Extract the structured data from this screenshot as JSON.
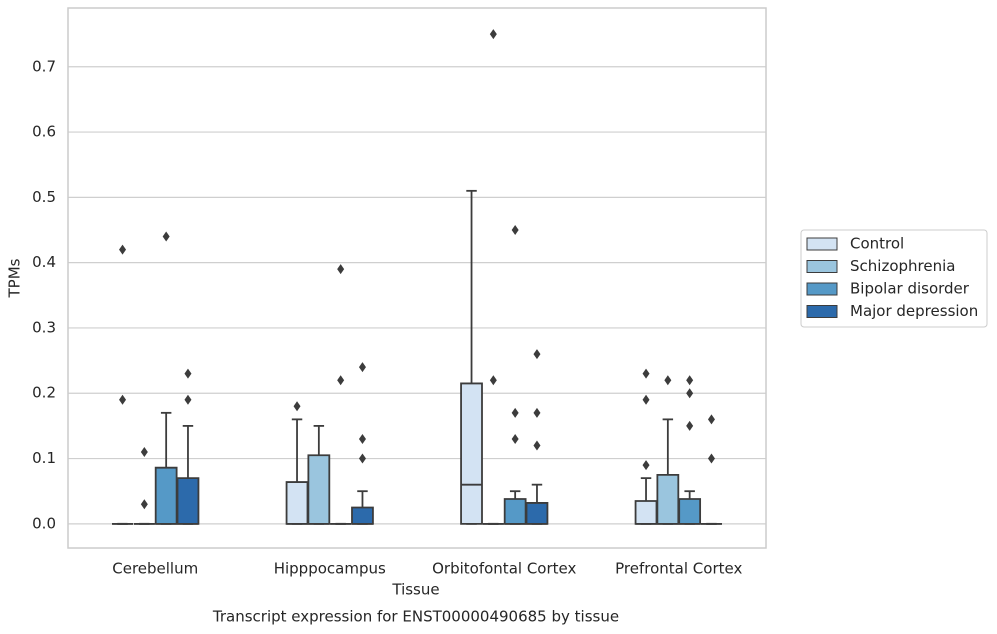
{
  "chart_data": {
    "type": "box",
    "caption": "Transcript expression for ENST00000490685 by tissue",
    "xlabel": "Tissue",
    "ylabel": "TPMs",
    "categories": [
      "Cerebellum",
      "Hipppocampus",
      "Orbitofontal Cortex",
      "Prefrontal Cortex"
    ],
    "ylim": [
      -0.037,
      0.79
    ],
    "yticks": [
      {
        "value": 0,
        "label": "0.0"
      },
      0.1,
      0.2,
      0.3,
      0.4,
      0.5,
      0.6,
      0.7
    ],
    "grid": true,
    "legend": "right",
    "series": [
      {
        "name": "Control",
        "color": "#d3e3f3",
        "boxes": [
          {
            "min": 0,
            "q1": 0,
            "median": 0,
            "q3": 0,
            "max": 0,
            "outliers": [
              0.42,
              0.19
            ]
          },
          {
            "min": 0,
            "q1": 0,
            "median": 0,
            "q3": 0.064,
            "max": 0.16,
            "outliers": [
              0.18
            ]
          },
          {
            "min": 0,
            "q1": 0,
            "median": 0.06,
            "q3": 0.215,
            "max": 0.51,
            "outliers": []
          },
          {
            "min": 0,
            "q1": 0,
            "median": 0,
            "q3": 0.035,
            "max": 0.07,
            "outliers": [
              0.23,
              0.19,
              0.09
            ]
          }
        ]
      },
      {
        "name": "Schizophrenia",
        "color": "#9ac5de",
        "boxes": [
          {
            "min": 0,
            "q1": 0,
            "median": 0,
            "q3": 0,
            "max": 0,
            "outliers": [
              0.11,
              0.03
            ]
          },
          {
            "min": 0,
            "q1": 0,
            "median": 0,
            "q3": 0.105,
            "max": 0.15,
            "outliers": []
          },
          {
            "min": 0,
            "q1": 0,
            "median": 0,
            "q3": 0,
            "max": 0,
            "outliers": [
              0.75,
              0.22
            ]
          },
          {
            "min": 0,
            "q1": 0,
            "median": 0,
            "q3": 0.075,
            "max": 0.16,
            "outliers": [
              0.22
            ]
          }
        ]
      },
      {
        "name": "Bipolar disorder",
        "color": "#5599c7",
        "boxes": [
          {
            "min": 0,
            "q1": 0,
            "median": 0,
            "q3": 0.086,
            "max": 0.17,
            "outliers": [
              0.44
            ]
          },
          {
            "min": 0,
            "q1": 0,
            "median": 0,
            "q3": 0,
            "max": 0,
            "outliers": [
              0.39,
              0.22
            ]
          },
          {
            "min": 0,
            "q1": 0,
            "median": 0,
            "q3": 0.038,
            "max": 0.05,
            "outliers": [
              0.45,
              0.17,
              0.13
            ]
          },
          {
            "min": 0,
            "q1": 0,
            "median": 0,
            "q3": 0.038,
            "max": 0.05,
            "outliers": [
              0.22,
              0.2,
              0.15
            ]
          }
        ]
      },
      {
        "name": "Major depression",
        "color": "#2c6aab",
        "boxes": [
          {
            "min": 0,
            "q1": 0,
            "median": 0,
            "q3": 0.07,
            "max": 0.15,
            "outliers": [
              0.23,
              0.19
            ]
          },
          {
            "min": 0,
            "q1": 0,
            "median": 0,
            "q3": 0.025,
            "max": 0.05,
            "outliers": [
              0.24,
              0.13,
              0.1
            ]
          },
          {
            "min": 0,
            "q1": 0,
            "median": 0,
            "q3": 0.032,
            "max": 0.06,
            "outliers": [
              0.26,
              0.17,
              0.12
            ]
          },
          {
            "min": 0,
            "q1": 0,
            "median": 0,
            "q3": 0,
            "max": 0,
            "outliers": [
              0.16,
              0.1
            ]
          }
        ]
      }
    ]
  }
}
